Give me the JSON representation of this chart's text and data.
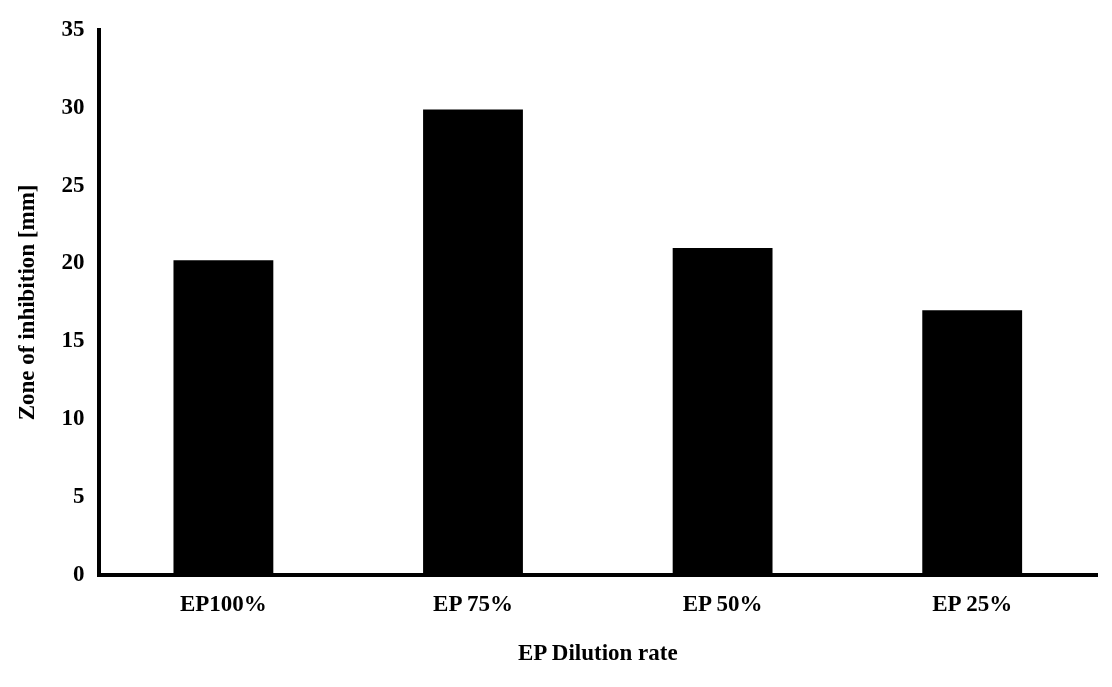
{
  "chart_data": {
    "type": "bar",
    "xlabel": "EP Dilution rate",
    "ylabel": "Zone of inhibition [mm]",
    "categories": [
      "EP100%",
      "EP 75%",
      "EP 50%",
      "EP 25%"
    ],
    "values": [
      20.2,
      29.9,
      21,
      17
    ],
    "color": "#000000",
    "ylim": [
      0,
      35
    ],
    "yticks": [
      0,
      5,
      10,
      15,
      20,
      25,
      30,
      35
    ],
    "grid": false,
    "legend": false
  }
}
